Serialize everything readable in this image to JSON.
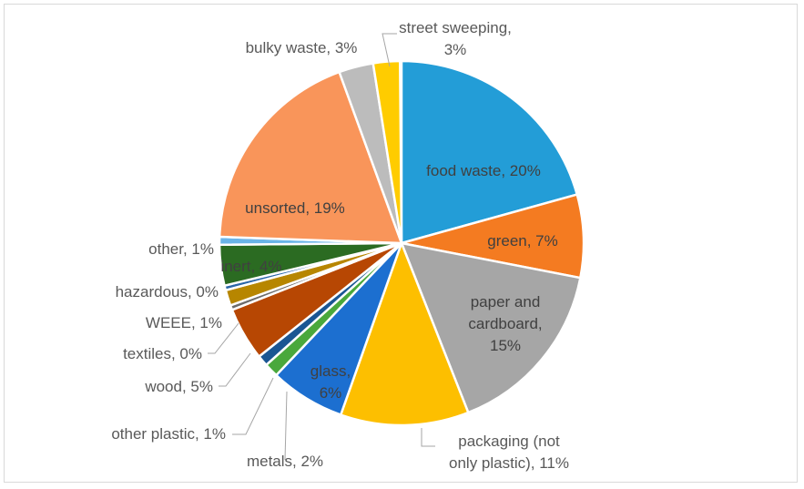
{
  "chart_data": {
    "type": "pie",
    "title": "",
    "slices": [
      {
        "label": "food waste",
        "value": 20,
        "color": "#239dd7"
      },
      {
        "label": "green",
        "value": 7,
        "color": "#f47b21"
      },
      {
        "label": "paper and cardboard",
        "value": 15,
        "color": "#a6a6a6"
      },
      {
        "label": "packaging (not only plastic)",
        "value": 11,
        "color": "#fdbf00"
      },
      {
        "label": "glass",
        "value": 6,
        "color": "#1c6fd0"
      },
      {
        "label": "metals",
        "value": 2,
        "color": "#4aa83c"
      },
      {
        "label": "other plastic",
        "value": 1,
        "color": "#1a5693"
      },
      {
        "label": "wood",
        "value": 5,
        "color": "#b74703"
      },
      {
        "label": "textiles",
        "value": 0,
        "color": "#6b6b6b"
      },
      {
        "label": "WEEE",
        "value": 1,
        "color": "#b78600"
      },
      {
        "label": "hazardous",
        "value": 0,
        "color": "#2965a8"
      },
      {
        "label": "inert",
        "value": 4,
        "color": "#2b6b22"
      },
      {
        "label": "other",
        "value": 1,
        "color": "#6ab4e8"
      },
      {
        "label": "unsorted",
        "value": 19,
        "color": "#f9955a"
      },
      {
        "label": "bulky waste",
        "value": 3,
        "color": "#bcbcbc"
      },
      {
        "label": "street sweeping",
        "value": 3,
        "color": "#ffcc00"
      }
    ],
    "data_labels": [
      {
        "key": "food_waste",
        "lines": [
          "food waste, 20%"
        ]
      },
      {
        "key": "green",
        "lines": [
          "green, 7%"
        ]
      },
      {
        "key": "paper",
        "lines": [
          "paper and",
          "cardboard,",
          "15%"
        ]
      },
      {
        "key": "packaging",
        "lines": [
          "packaging (not",
          "only plastic), 11%"
        ]
      },
      {
        "key": "glass",
        "lines": [
          "glass,",
          "6%"
        ]
      },
      {
        "key": "metals",
        "lines": [
          "metals, 2%"
        ]
      },
      {
        "key": "other_plastic",
        "lines": [
          "other plastic, 1%"
        ]
      },
      {
        "key": "wood",
        "lines": [
          "wood, 5%"
        ]
      },
      {
        "key": "textiles",
        "lines": [
          "textiles, 0%"
        ]
      },
      {
        "key": "weee",
        "lines": [
          "WEEE, 1%"
        ]
      },
      {
        "key": "hazardous",
        "lines": [
          "hazardous, 0%"
        ]
      },
      {
        "key": "inert",
        "lines": [
          "inert, 4%"
        ]
      },
      {
        "key": "other",
        "lines": [
          "other, 1%"
        ]
      },
      {
        "key": "unsorted",
        "lines": [
          "unsorted, 19%"
        ]
      },
      {
        "key": "bulky",
        "lines": [
          "bulky waste, 3%"
        ]
      },
      {
        "key": "street",
        "lines": [
          "street sweeping,",
          "3%"
        ]
      }
    ],
    "label_color": "#595959",
    "inside_label_color": "#404040",
    "legend": "none"
  }
}
